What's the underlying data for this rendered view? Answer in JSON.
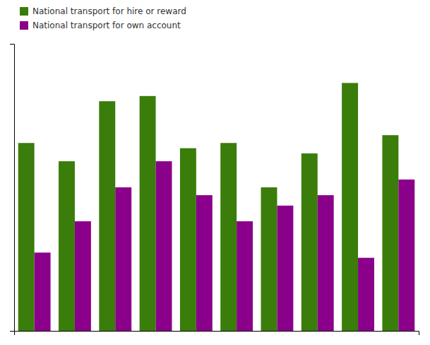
{
  "chart_data": {
    "type": "bar",
    "categories": [
      null,
      null,
      null,
      null,
      null,
      null,
      null,
      null,
      null,
      null
    ],
    "series": [
      {
        "name": "National transport for hire or reward",
        "color": "#3a7d0a",
        "values": [
          72,
          65,
          88,
          90,
          70,
          72,
          55,
          68,
          95,
          75
        ]
      },
      {
        "name": "National transport for own account",
        "color": "#8b008b",
        "values": [
          30,
          42,
          55,
          65,
          52,
          42,
          48,
          52,
          28,
          58
        ]
      }
    ],
    "ylim": [
      0,
      110
    ],
    "yticks": [],
    "grid": false,
    "tick_labels": false,
    "legend": "upper left"
  }
}
